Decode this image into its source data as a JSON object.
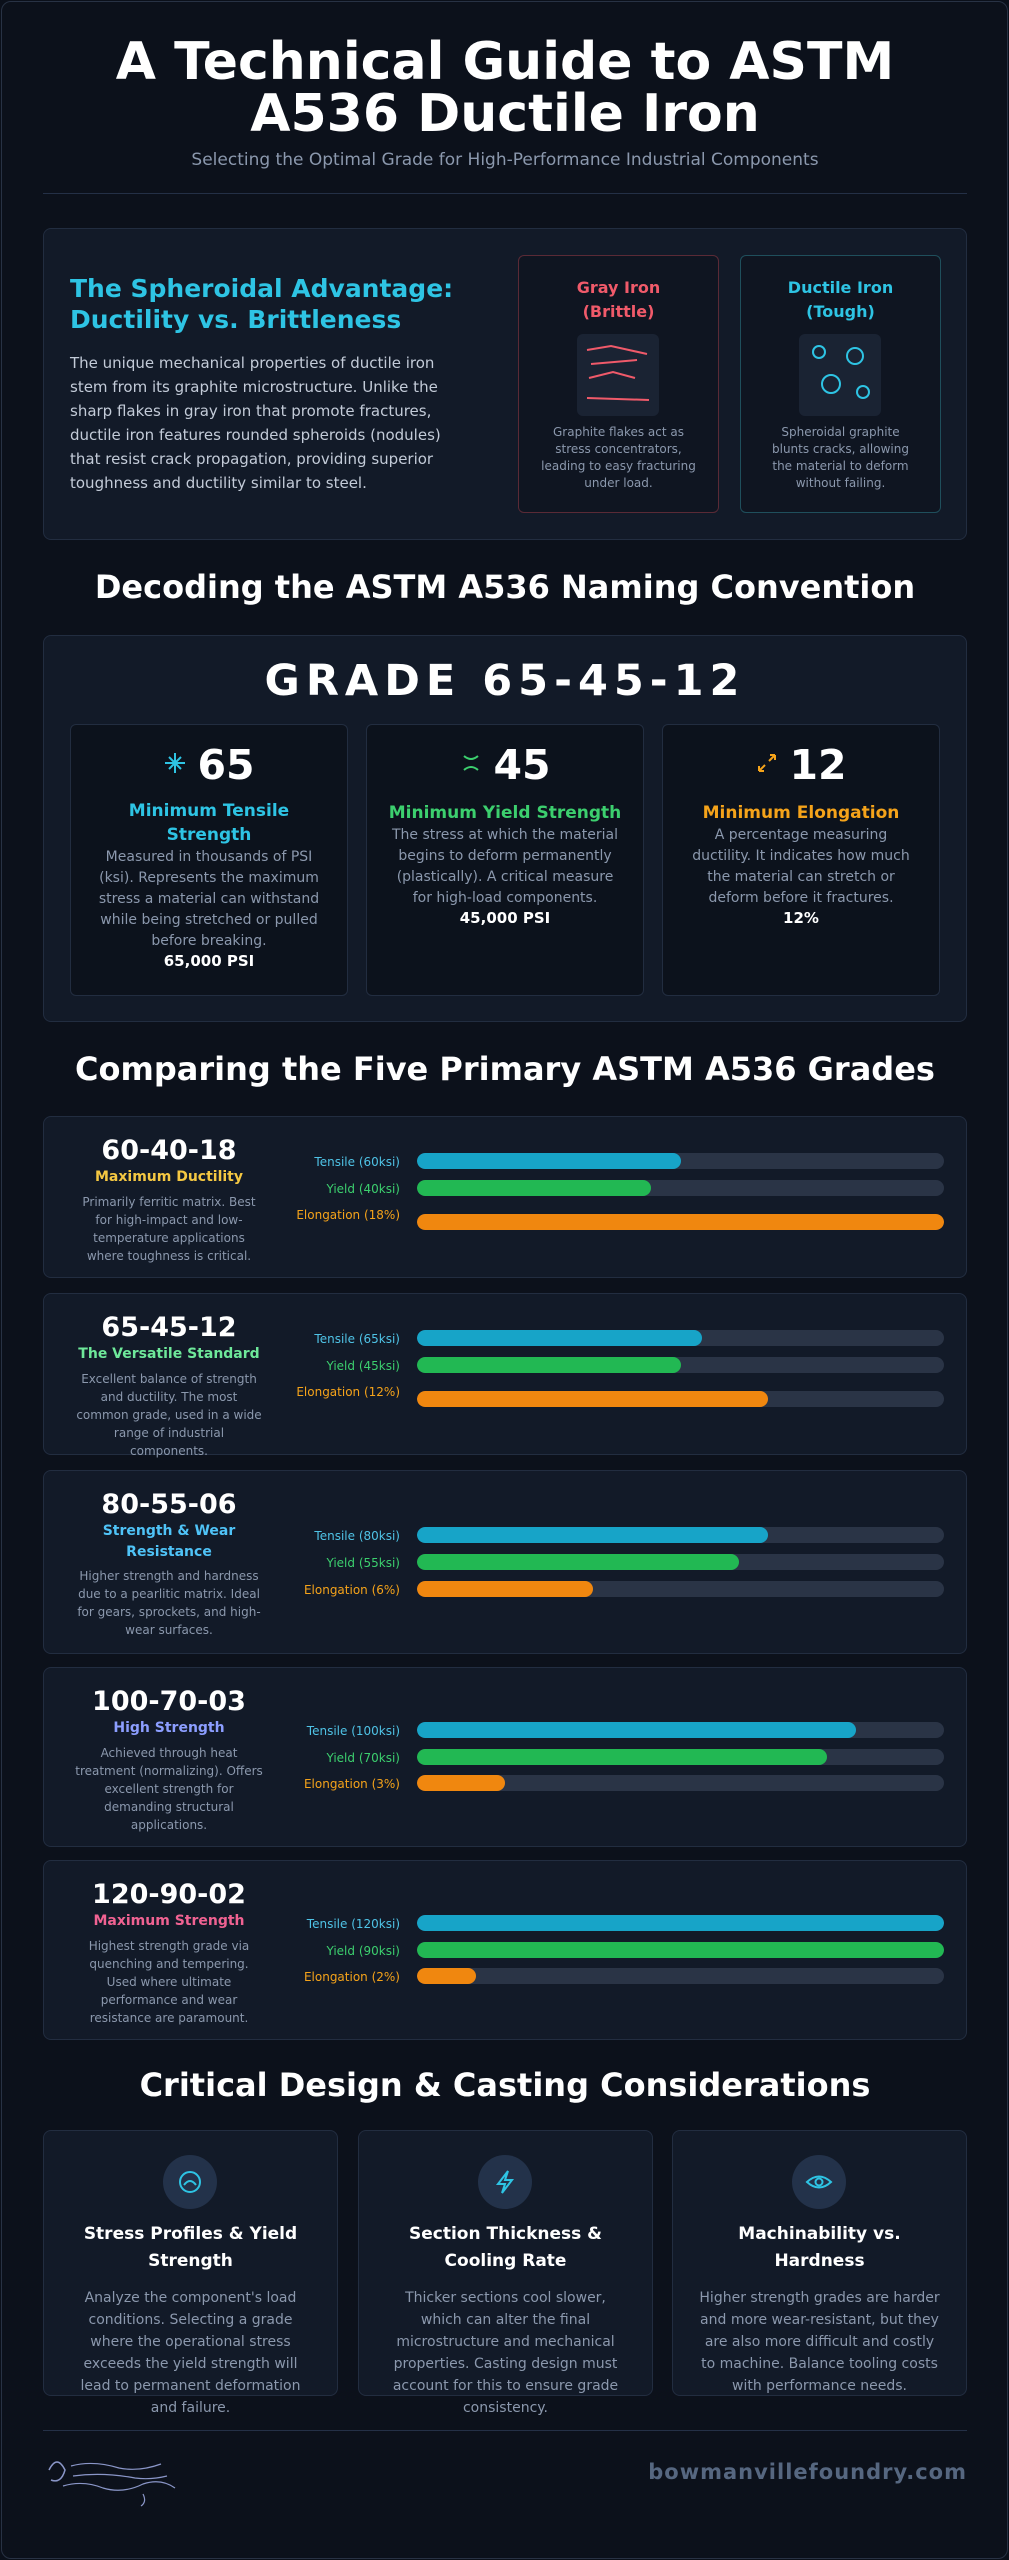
{
  "header": {
    "title": "A Technical Guide to ASTM A536 Ductile Iron",
    "subtitle": "Selecting the Optimal Grade for High-Performance Industrial Components"
  },
  "advantage": {
    "title": "The Spheroidal Advantage: Ductility vs. Brittleness",
    "text": "The unique mechanical properties of ductile iron stem from its graphite microstructure. Unlike the sharp flakes in gray iron that promote fractures, ductile iron features rounded spheroids (nodules) that resist crack propagation, providing superior toughness and ductility similar to steel.",
    "gray": {
      "name": "Gray Iron (Brittle)",
      "desc": "Graphite flakes act as stress concentrators, leading to easy fracturing under load.",
      "color": "#f05a6a"
    },
    "ductile": {
      "name": "Ductile Iron (Tough)",
      "desc": "Spheroidal graphite blunts cracks, allowing the material to deform without failing.",
      "color": "#2ec4e4"
    }
  },
  "naming": {
    "heading": "Decoding the ASTM A536 Naming Convention",
    "grade": "GRADE 65-45-12",
    "parts": [
      {
        "num": "65",
        "label": "Minimum Tensile Strength",
        "text": "Measured in thousands of PSI (ksi). Represents the maximum stress a material can withstand while being stretched or pulled before breaking.",
        "value": "65,000 PSI",
        "color": "#2ec4e4",
        "icon": "tensile-icon"
      },
      {
        "num": "45",
        "label": "Minimum Yield Strength",
        "text": "The stress at which the material begins to deform permanently (plastically). A critical measure for high-load components.",
        "value": "45,000 PSI",
        "color": "#3ccf6e",
        "icon": "yield-icon"
      },
      {
        "num": "12",
        "label": "Minimum Elongation",
        "text": "A percentage measuring ductility. It indicates how much the material can stretch or deform before it fractures.",
        "value": "12%",
        "color": "#f5a31a",
        "icon": "expand-icon"
      }
    ]
  },
  "grades": {
    "heading": "Comparing the Five Primary ASTM A536 Grades",
    "items": [
      {
        "name": "60-40-18",
        "sub": "Maximum Ductility",
        "subColor": "#f5c842",
        "desc": "Primarily ferritic matrix. Best for high-impact and low-temperature applications where toughness is critical.",
        "tensileLabel": "Tensile (60ksi)",
        "yieldLabel": "Yield (40ksi)",
        "elongLabel": "Elongation (18%)",
        "tensile": 60,
        "yield": 40,
        "elong": 18
      },
      {
        "name": "65-45-12",
        "sub": "The Versatile Standard",
        "subColor": "#6ee89a",
        "desc": "Excellent balance of strength and ductility. The most common grade, used in a wide range of industrial components.",
        "tensileLabel": "Tensile (65ksi)",
        "yieldLabel": "Yield (45ksi)",
        "elongLabel": "Elongation (12%)",
        "tensile": 65,
        "yield": 45,
        "elong": 12
      },
      {
        "name": "80-55-06",
        "sub": "Strength & Wear Resistance",
        "subColor": "#4fc3f7",
        "desc": "Higher strength and hardness due to a pearlitic matrix. Ideal for gears, sprockets, and high-wear surfaces.",
        "tensileLabel": "Tensile (80ksi)",
        "yieldLabel": "Yield (55ksi)",
        "elongLabel": "Elongation (6%)",
        "tensile": 80,
        "yield": 55,
        "elong": 6
      },
      {
        "name": "100-70-03",
        "sub": "High Strength",
        "subColor": "#8c9eff",
        "desc": "Achieved through heat treatment (normalizing). Offers excellent strength for demanding structural applications.",
        "tensileLabel": "Tensile (100ksi)",
        "yieldLabel": "Yield (70ksi)",
        "elongLabel": "Elongation (3%)",
        "tensile": 100,
        "yield": 70,
        "elong": 3
      },
      {
        "name": "120-90-02",
        "sub": "Maximum Strength",
        "subColor": "#f06292",
        "desc": "Highest strength grade via quenching and tempering. Used where ultimate performance and wear resistance are paramount.",
        "tensileLabel": "Tensile (120ksi)",
        "yieldLabel": "Yield (90ksi)",
        "elongLabel": "Elongation (2%)",
        "tensile": 120,
        "yield": 90,
        "elong": 2
      }
    ],
    "colors": {
      "tensile": "#17a4c8",
      "yield": "#22b853",
      "elong": "#f0870f",
      "tensileText": "#4fc3e6",
      "yieldText": "#3ccf6e",
      "elongText": "#f5a31a"
    }
  },
  "considerations": {
    "heading": "Critical Design & Casting Considerations",
    "items": [
      {
        "title": "Stress Profiles & Yield Strength",
        "text": "Analyze the component's load conditions. Selecting a grade where the operational stress exceeds the yield strength will lead to permanent deformation and failure.",
        "icon": "stress-icon"
      },
      {
        "title": "Section Thickness & Cooling Rate",
        "text": "Thicker sections cool slower, which can alter the final microstructure and mechanical properties. Casting design must account for this to ensure grade consistency.",
        "icon": "lightning-icon"
      },
      {
        "title": "Machinability vs. Hardness",
        "text": "Higher strength grades are harder and more wear-resistant, but they are also more difficult and costly to machine. Balance tooling costs with performance needs.",
        "icon": "eye-icon"
      }
    ]
  },
  "footer": {
    "logo": "Bowmanville Foundry Company",
    "site": "bowmanvillefoundry.com"
  }
}
